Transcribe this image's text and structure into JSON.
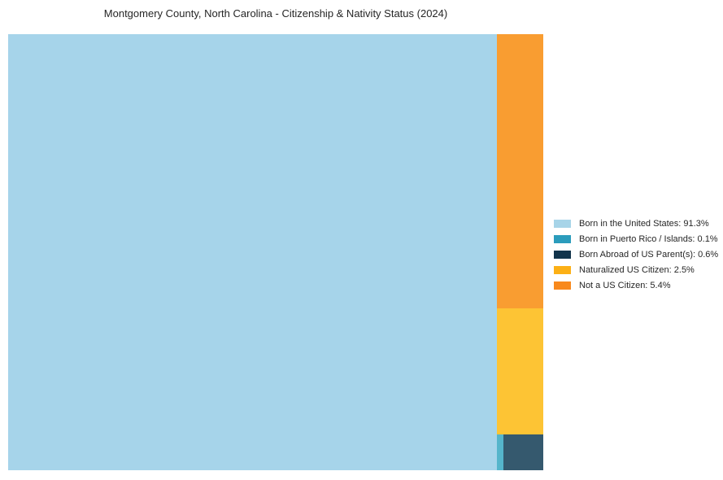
{
  "title": "Montgomery County, North Carolina - Citizenship & Nativity Status (2024)",
  "chart_data": {
    "type": "treemap",
    "title": "Montgomery County, North Carolina - Citizenship & Nativity Status (2024)",
    "legend_position": "right-middle",
    "background_color": "#ffffff",
    "total_percent": 100,
    "items": [
      {
        "label": "Born in the United States",
        "value": 91.3,
        "display": "Born in the United States: 91.3%",
        "legend_color": "#a7d4e8",
        "tile_color": "#a6d4ea"
      },
      {
        "label": "Born in Puerto Rico / Islands",
        "value": 0.1,
        "display": "Born in Puerto Rico / Islands: 0.1%",
        "legend_color": "#2b9cbc",
        "tile_color": "#55b5cb"
      },
      {
        "label": "Born Abroad of US Parent(s)",
        "value": 0.6,
        "display": "Born Abroad of US Parent(s): 0.6%",
        "legend_color": "#12344b",
        "tile_color": "#35596e"
      },
      {
        "label": "Naturalized US Citizen",
        "value": 2.5,
        "display": "Naturalized US Citizen: 2.5%",
        "legend_color": "#fcb016",
        "tile_color": "#fdc434"
      },
      {
        "label": "Not a US Citizen",
        "value": 5.4,
        "display": "Not a US Citizen: 5.4%",
        "legend_color": "#f8891d",
        "tile_color": "#f99d31"
      }
    ]
  }
}
